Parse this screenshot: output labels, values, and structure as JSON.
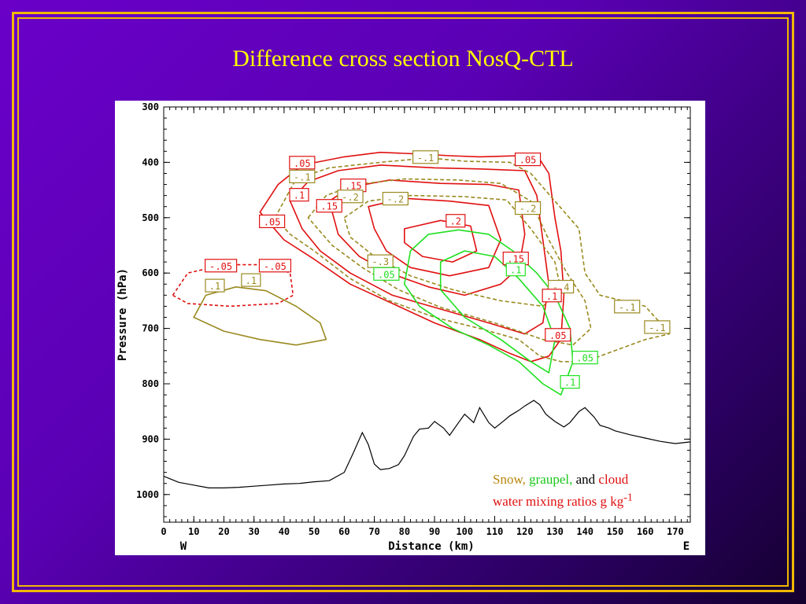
{
  "slide": {
    "title": "Difference cross section NosQ-CTL",
    "frame_color": "#f0b800",
    "title_color": "#ffff00"
  },
  "chart_data": {
    "type": "contour",
    "xlabel": "Distance (km)",
    "ylabel": "Pressure (hPa)",
    "xlim": [
      0,
      175
    ],
    "ylim": [
      300,
      1050
    ],
    "y_reversed": true,
    "x_ticks": [
      0,
      10,
      20,
      30,
      40,
      50,
      60,
      70,
      80,
      90,
      100,
      110,
      120,
      130,
      140,
      150,
      160,
      170
    ],
    "y_ticks": [
      300,
      400,
      500,
      600,
      700,
      800,
      900,
      1000
    ],
    "x_end_labels": {
      "left": "W",
      "right": "E"
    },
    "series_colors": {
      "snow": "#9a8a20",
      "graupel": "#20e020",
      "cloud": "#e01010"
    },
    "contour_labels": [
      {
        "text": ".05",
        "color": "cloud",
        "x": 46,
        "y": 402
      },
      {
        "text": "-.1",
        "color": "snow",
        "x": 46,
        "y": 427
      },
      {
        "text": ".1",
        "color": "cloud",
        "x": 45,
        "y": 460
      },
      {
        "text": ".15",
        "color": "cloud",
        "x": 63,
        "y": 443
      },
      {
        "text": "-.2",
        "color": "snow",
        "x": 62,
        "y": 463
      },
      {
        "text": ".15",
        "color": "cloud",
        "x": 55,
        "y": 480
      },
      {
        "text": "-.2",
        "color": "snow",
        "x": 77,
        "y": 467
      },
      {
        "text": "-.1",
        "color": "snow",
        "x": 87,
        "y": 392
      },
      {
        "text": ".05",
        "color": "cloud",
        "x": 121,
        "y": 396
      },
      {
        "text": "-.2",
        "color": "snow",
        "x": 121,
        "y": 484
      },
      {
        "text": ".05",
        "color": "cloud",
        "x": 36,
        "y": 508
      },
      {
        "text": ".2",
        "color": "cloud",
        "x": 97,
        "y": 507
      },
      {
        "text": "-.3",
        "color": "snow",
        "x": 72,
        "y": 580
      },
      {
        "text": ".05",
        "color": "graupel",
        "x": 74,
        "y": 603
      },
      {
        "text": ".15",
        "color": "cloud",
        "x": 117,
        "y": 575
      },
      {
        "text": ".1",
        "color": "graupel",
        "x": 117,
        "y": 595
      },
      {
        "text": "-.05",
        "color": "cloud",
        "x": 19,
        "y": 588
      },
      {
        "text": "-.05",
        "color": "cloud",
        "x": 37,
        "y": 588
      },
      {
        "text": ".1",
        "color": "snow",
        "x": 17,
        "y": 624
      },
      {
        "text": ".1",
        "color": "snow",
        "x": 29,
        "y": 614
      },
      {
        "text": "-.4",
        "color": "snow",
        "x": 132,
        "y": 626
      },
      {
        "text": ".1",
        "color": "cloud",
        "x": 129,
        "y": 642
      },
      {
        "text": ".05",
        "color": "cloud",
        "x": 131,
        "y": 713
      },
      {
        "text": ".05",
        "color": "graupel",
        "x": 140,
        "y": 754
      },
      {
        "text": ".1",
        "color": "graupel",
        "x": 135,
        "y": 798
      },
      {
        "text": "-.1",
        "color": "snow",
        "x": 154,
        "y": 662
      },
      {
        "text": "-.1",
        "color": "snow",
        "x": 164,
        "y": 699
      }
    ],
    "terrain": {
      "x": [
        0,
        5,
        10,
        15,
        20,
        25,
        30,
        35,
        40,
        45,
        50,
        55,
        60,
        63,
        66,
        68,
        70,
        72,
        75,
        78,
        80,
        83,
        85,
        88,
        90,
        93,
        95,
        98,
        100,
        103,
        105,
        108,
        110,
        113,
        115,
        118,
        120,
        123,
        125,
        127,
        130,
        133,
        135,
        138,
        140,
        143,
        145,
        148,
        150,
        155,
        160,
        165,
        170,
        175
      ],
      "p": [
        967,
        978,
        983,
        988,
        988,
        987,
        985,
        983,
        981,
        980,
        977,
        975,
        960,
        925,
        888,
        910,
        945,
        955,
        953,
        946,
        930,
        895,
        882,
        880,
        868,
        880,
        893,
        870,
        855,
        870,
        843,
        870,
        880,
        867,
        858,
        848,
        840,
        830,
        838,
        855,
        868,
        878,
        870,
        850,
        843,
        860,
        875,
        880,
        885,
        892,
        898,
        904,
        908,
        905
      ]
    },
    "annotation": {
      "snow": "Snow,",
      "graupel": "graupel,",
      "and": "and",
      "cloud": "cloud",
      "line2": "water mixing ratios g kg",
      "superscript": "-1"
    }
  }
}
